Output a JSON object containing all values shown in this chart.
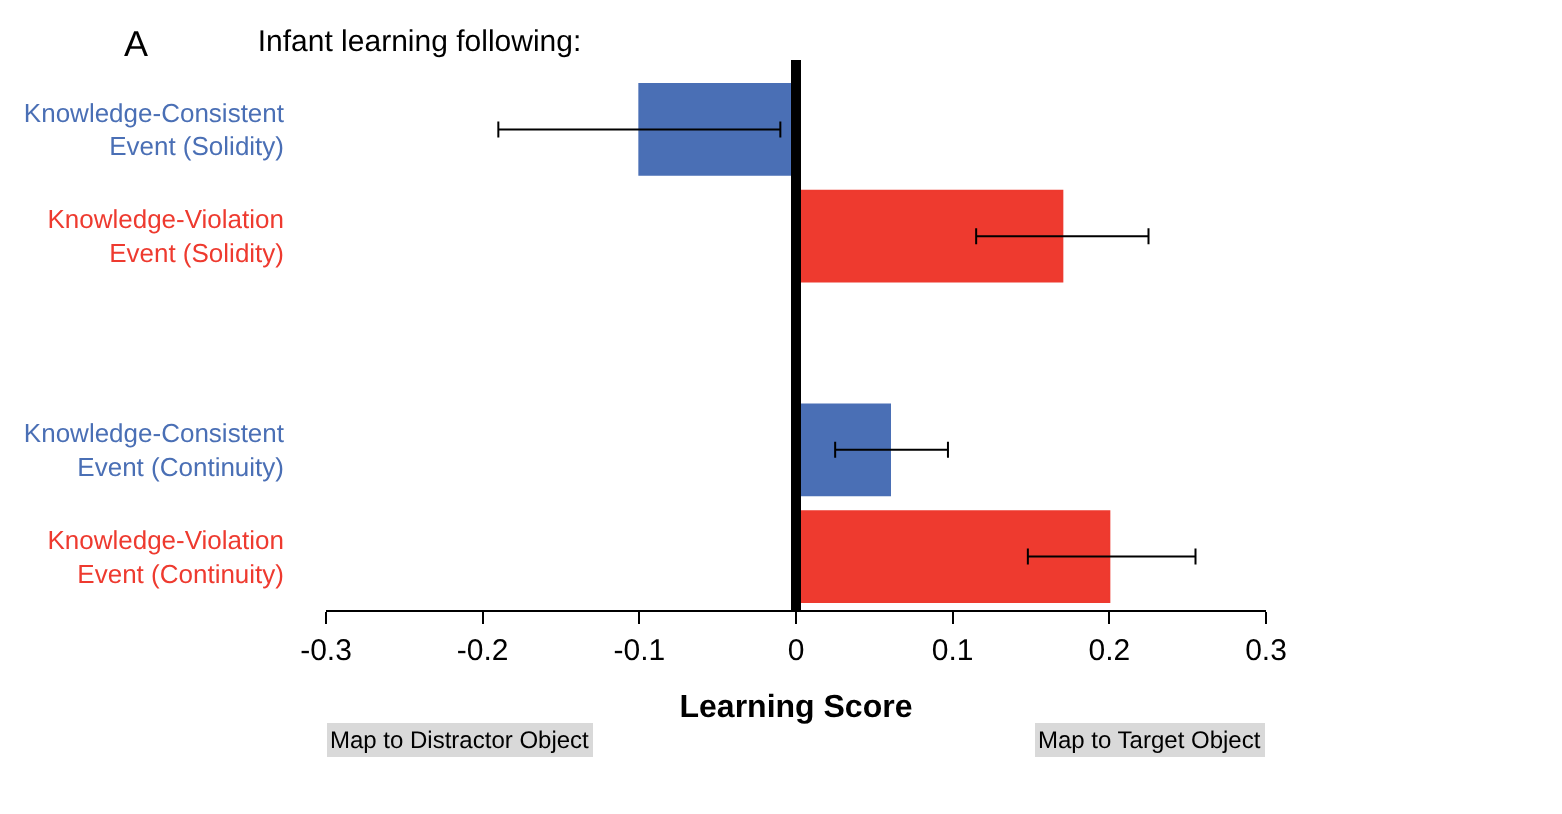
{
  "chart_data": {
    "type": "bar",
    "orientation": "horizontal",
    "title": "Infant learning following:",
    "xlabel": "Learning Score",
    "categories": [
      "Knowledge-Consistent\nEvent (Solidity)",
      "Knowledge-Violation\nEvent (Solidity)",
      null,
      "Knowledge-Consistent\nEvent (Continuity)",
      "Knowledge-Violation\nEvent (Continuity)"
    ],
    "values": [
      -0.1,
      0.17,
      null,
      0.06,
      0.2
    ],
    "errors": [
      [
        -0.19,
        -0.01
      ],
      [
        0.115,
        0.225
      ],
      null,
      [
        0.025,
        0.097
      ],
      [
        0.148,
        0.255
      ]
    ],
    "colors": [
      "#4a6fb5",
      "#ee3a2f",
      null,
      "#4a6fb5",
      "#ee3a2f"
    ],
    "xlim": [
      -0.3,
      0.3
    ],
    "xticks": [
      -0.3,
      -0.2,
      -0.1,
      0,
      0.1,
      0.2,
      0.3
    ],
    "ref_lines": [
      {
        "axis": "x",
        "value": 0,
        "color": "#000000"
      }
    ],
    "annotations": [
      "A",
      "Map to Distractor Object",
      "Map to Target Object"
    ]
  }
}
